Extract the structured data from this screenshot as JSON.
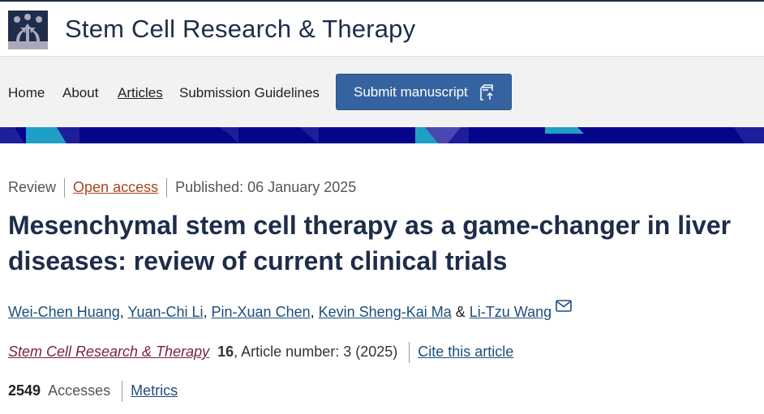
{
  "journal": {
    "title": "Stem Cell Research & Therapy"
  },
  "nav": {
    "home": "Home",
    "about": "About",
    "articles": "Articles",
    "guidelines": "Submission Guidelines",
    "submit": "Submit manuscript"
  },
  "article": {
    "type": "Review",
    "access": "Open access",
    "published": "Published: 06 January 2025",
    "title": "Mesenchymal stem cell therapy as a game-changer in liver diseases: review of current clinical trials",
    "authors": [
      "Wei-Chen Huang",
      "Yuan-Chi Li",
      "Pin-Xuan Chen",
      "Kevin Sheng-Kai Ma",
      "Li-Tzu Wang"
    ],
    "journal_name": "Stem Cell Research & Therapy",
    "volume": "16",
    "article_number": ", Article number: 3 (2025)",
    "cite_label": "Cite this article",
    "accesses": "2549",
    "accesses_label": "Accesses",
    "metrics": "Metrics"
  },
  "colors": {
    "brand": "#1d2d4a",
    "button": "#34639f",
    "banner": "#05058c",
    "open_access": "#a8461e"
  }
}
